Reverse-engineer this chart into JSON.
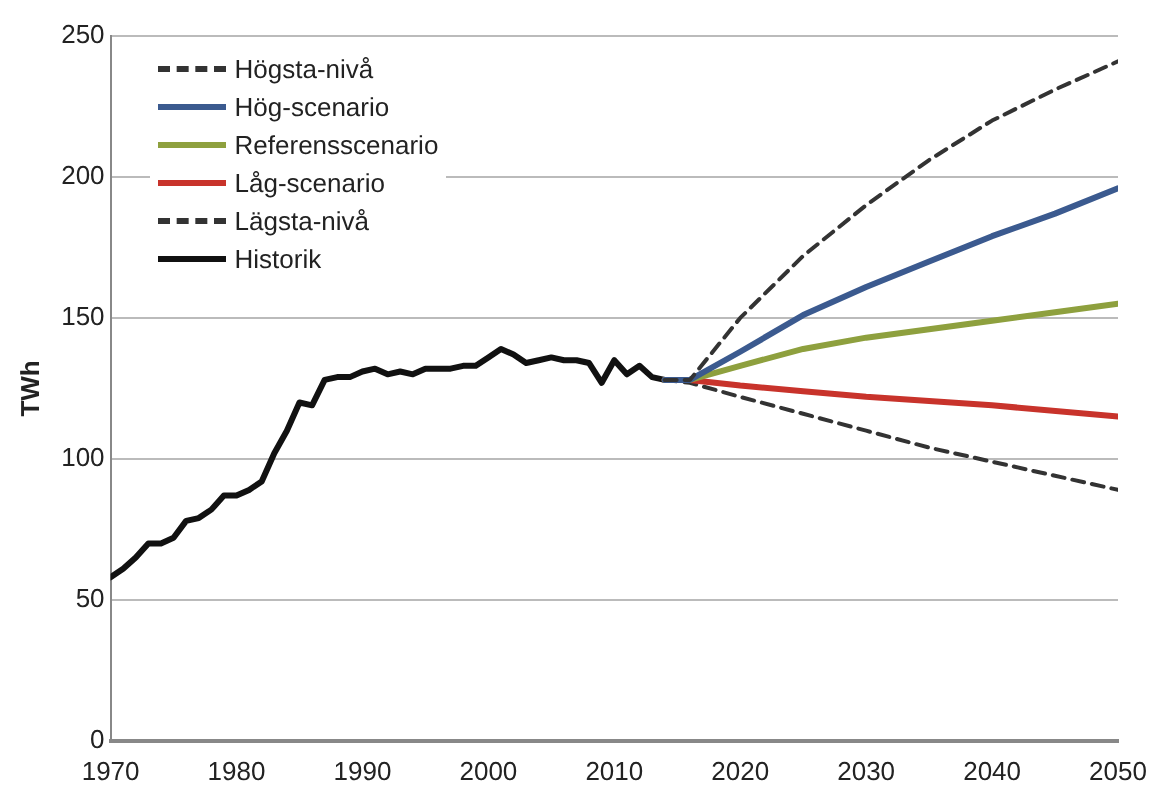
{
  "chart_data": {
    "type": "line",
    "ylabel": "TWh",
    "xlim": [
      1970,
      2050
    ],
    "xticks": [
      1970,
      1980,
      1990,
      2000,
      2010,
      2020,
      2030,
      2040,
      2050
    ],
    "ylim": [
      0,
      250
    ],
    "yticks": [
      0,
      50,
      100,
      150,
      200,
      250
    ],
    "grid": "y",
    "legend": "top left",
    "marker": "none",
    "series": [
      {
        "name": "Högsta-nivå",
        "color": "#333333",
        "line_style": "dashed",
        "x": [
          2014,
          2016,
          2020,
          2025,
          2030,
          2035,
          2040,
          2045,
          2050
        ],
        "values": [
          128,
          128,
          150,
          172,
          190,
          206,
          220,
          231,
          241
        ]
      },
      {
        "name": "Hög-scenario",
        "color": "#3b5a8f",
        "line_style": "solid",
        "x": [
          2014,
          2016,
          2020,
          2025,
          2030,
          2035,
          2040,
          2045,
          2050
        ],
        "values": [
          128,
          128,
          138,
          151,
          161,
          170,
          179,
          187,
          196
        ]
      },
      {
        "name": "Referensscenario",
        "color": "#8ea03e",
        "line_style": "solid",
        "x": [
          2014,
          2016,
          2020,
          2025,
          2030,
          2035,
          2040,
          2045,
          2050
        ],
        "values": [
          128,
          128,
          133,
          139,
          143,
          146,
          149,
          152,
          155
        ]
      },
      {
        "name": "Låg-scenario",
        "color": "#c8332b",
        "line_style": "solid",
        "x": [
          2014,
          2016,
          2020,
          2025,
          2030,
          2040,
          2050
        ],
        "values": [
          128,
          128,
          126,
          124,
          122,
          119,
          115
        ]
      },
      {
        "name": "Lägsta-nivå",
        "color": "#333333",
        "line_style": "dashed",
        "x": [
          2014,
          2016,
          2020,
          2025,
          2030,
          2035,
          2040,
          2045,
          2050
        ],
        "values": [
          128,
          127,
          122,
          116,
          110,
          104,
          99,
          94,
          89
        ]
      },
      {
        "name": "Historik",
        "color": "#111111",
        "line_style": "solid",
        "x": [
          1970,
          1971,
          1972,
          1973,
          1974,
          1975,
          1976,
          1977,
          1978,
          1979,
          1980,
          1981,
          1982,
          1983,
          1984,
          1985,
          1986,
          1987,
          1988,
          1989,
          1990,
          1991,
          1992,
          1993,
          1994,
          1995,
          1996,
          1997,
          1998,
          1999,
          2000,
          2001,
          2002,
          2003,
          2004,
          2005,
          2006,
          2007,
          2008,
          2009,
          2010,
          2011,
          2012,
          2013,
          2014
        ],
        "values": [
          58,
          61,
          65,
          70,
          70,
          72,
          78,
          79,
          82,
          87,
          87,
          89,
          92,
          102,
          110,
          120,
          119,
          128,
          129,
          129,
          131,
          132,
          130,
          131,
          130,
          132,
          132,
          132,
          133,
          133,
          136,
          139,
          137,
          134,
          135,
          136,
          135,
          135,
          134,
          127,
          135,
          130,
          133,
          129,
          128
        ]
      }
    ]
  }
}
